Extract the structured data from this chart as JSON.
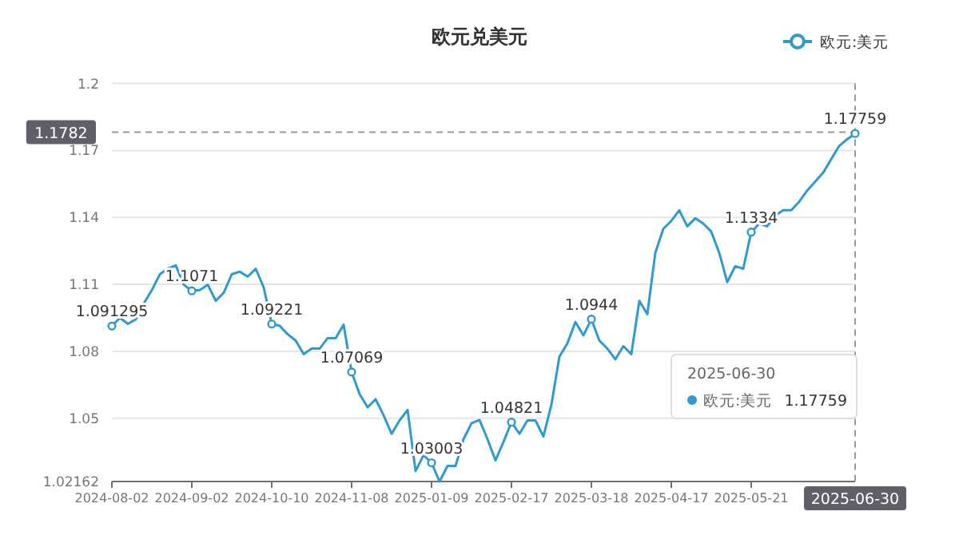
{
  "chart_data": {
    "type": "line",
    "title": "欧元兑美元",
    "categories": [
      "2024-08-02",
      null,
      null,
      null,
      null,
      null,
      null,
      null,
      null,
      null,
      "2024-09-02",
      null,
      null,
      null,
      null,
      null,
      null,
      null,
      null,
      null,
      "2024-10-10",
      null,
      null,
      null,
      null,
      null,
      null,
      null,
      null,
      null,
      "2024-11-08",
      null,
      null,
      null,
      null,
      null,
      null,
      null,
      null,
      null,
      "2025-01-09",
      null,
      null,
      null,
      null,
      null,
      null,
      null,
      null,
      null,
      "2025-02-17",
      null,
      null,
      null,
      null,
      null,
      null,
      null,
      null,
      null,
      "2025-03-18",
      null,
      null,
      null,
      null,
      null,
      null,
      null,
      null,
      null,
      "2025-04-17",
      null,
      null,
      null,
      null,
      null,
      null,
      null,
      null,
      null,
      "2025-05-21",
      null,
      null,
      null,
      null,
      null,
      null,
      null,
      null,
      null,
      null,
      null,
      null,
      "2025-06-30"
    ],
    "series": [
      {
        "name": "欧元:美元",
        "color": "#2f9ad0",
        "values": [
          1.091295,
          1.095,
          1.0923,
          1.0943,
          1.1014,
          1.1074,
          1.1145,
          1.117,
          1.1185,
          1.1098,
          1.1071,
          1.1074,
          1.1098,
          1.1026,
          1.1062,
          1.1145,
          1.1157,
          1.1134,
          1.117,
          1.1086,
          1.09221,
          1.0914,
          1.0876,
          1.0848,
          1.0787,
          1.0812,
          1.0812,
          1.0859,
          1.0859,
          1.0919,
          1.07069,
          1.0608,
          1.0549,
          1.0585,
          1.0513,
          1.043,
          1.049,
          1.0537,
          1.0263,
          1.0334,
          1.03003,
          1.02162,
          1.0286,
          1.0286,
          1.0406,
          1.0477,
          1.0492,
          1.0406,
          1.0311,
          1.0394,
          1.04821,
          1.043,
          1.049,
          1.049,
          1.0418,
          1.0561,
          1.0776,
          1.0835,
          1.0931,
          1.0871,
          1.0944,
          1.0848,
          1.0812,
          1.0764,
          1.0823,
          1.0787,
          1.1026,
          1.0966,
          1.1241,
          1.1349,
          1.1384,
          1.1432,
          1.136,
          1.1396,
          1.1372,
          1.1336,
          1.1241,
          1.111,
          1.1181,
          1.117,
          1.1334,
          1.1372,
          1.136,
          1.1408,
          1.1432,
          1.1432,
          1.147,
          1.152,
          1.156,
          1.16,
          1.166,
          1.172,
          1.175,
          1.17759
        ],
        "value_labels": [
          "1.091295",
          null,
          null,
          null,
          null,
          null,
          null,
          null,
          null,
          null,
          "1.1071",
          null,
          null,
          null,
          null,
          null,
          null,
          null,
          null,
          null,
          "1.09221",
          null,
          null,
          null,
          null,
          null,
          null,
          null,
          null,
          null,
          "1.07069",
          null,
          null,
          null,
          null,
          null,
          null,
          null,
          null,
          null,
          "1.03003",
          null,
          null,
          null,
          null,
          null,
          null,
          null,
          null,
          null,
          "1.04821",
          null,
          null,
          null,
          null,
          null,
          null,
          null,
          null,
          null,
          "1.0944",
          null,
          null,
          null,
          null,
          null,
          null,
          null,
          null,
          null,
          null,
          null,
          null,
          null,
          null,
          null,
          null,
          null,
          null,
          null,
          "1.1334",
          null,
          null,
          null,
          null,
          null,
          null,
          null,
          null,
          null,
          null,
          null,
          null,
          "1.17759"
        ]
      }
    ],
    "ylim": [
      1.02162,
      1.2
    ],
    "yticks": [
      1.02162,
      1.05,
      1.08,
      1.11,
      1.14,
      1.17,
      1.2
    ],
    "grid": "y",
    "legend": "top right",
    "ref_lines": [
      {
        "axis": "y",
        "value": 1.1782,
        "label": "1.1782",
        "line_style": "dashed"
      },
      {
        "axis": "x",
        "value": "2025-06-30",
        "line_style": "dashed"
      }
    ],
    "annotations": [
      "2025-06-30",
      "欧元:美元",
      "1.17759"
    ]
  }
}
